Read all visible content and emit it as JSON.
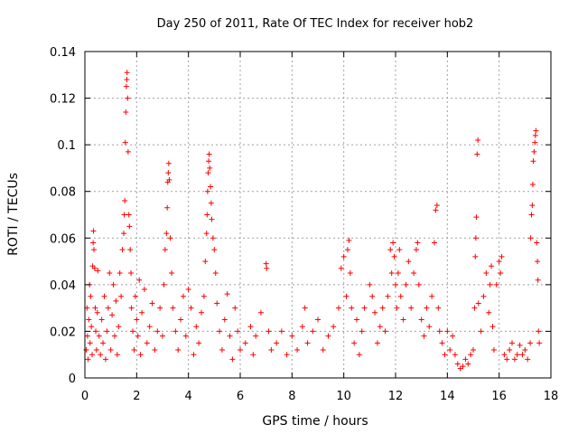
{
  "chart_data": {
    "type": "scatter",
    "title": "Day 250 of 2011, Rate Of TEC Index for receiver hob2",
    "xlabel": "GPS time / hours",
    "ylabel": "ROTI / TECUs",
    "xlim": [
      0,
      18
    ],
    "ylim": [
      0,
      0.14
    ],
    "x_ticks": [
      0,
      2,
      4,
      6,
      8,
      10,
      12,
      14,
      16,
      18
    ],
    "y_ticks": [
      0,
      0.02,
      0.04,
      0.06,
      0.08,
      0.1,
      0.12,
      0.14
    ],
    "x_tick_labels": [
      "0",
      "2",
      "4",
      "6",
      "8",
      "10",
      "12",
      "14",
      "16",
      "18"
    ],
    "y_tick_labels": [
      "0",
      "0.02",
      "0.04",
      "0.06",
      "0.08",
      "0.1",
      "0.12",
      "0.14"
    ],
    "grid": true,
    "marker": "+",
    "color": "#ff0000",
    "series": [
      {
        "name": "ROTI",
        "points": [
          [
            0.05,
            0.012
          ],
          [
            0.08,
            0.03
          ],
          [
            0.1,
            0.018
          ],
          [
            0.12,
            0.008
          ],
          [
            0.15,
            0.025
          ],
          [
            0.18,
            0.04
          ],
          [
            0.2,
            0.015
          ],
          [
            0.22,
            0.035
          ],
          [
            0.25,
            0.022
          ],
          [
            0.28,
            0.01
          ],
          [
            0.3,
            0.048
          ],
          [
            0.32,
            0.058
          ],
          [
            0.33,
            0.063
          ],
          [
            0.35,
            0.055
          ],
          [
            0.38,
            0.047
          ],
          [
            0.4,
            0.03
          ],
          [
            0.42,
            0.02
          ],
          [
            0.45,
            0.012
          ],
          [
            0.48,
            0.028
          ],
          [
            0.5,
            0.046
          ],
          [
            0.55,
            0.018
          ],
          [
            0.6,
            0.01
          ],
          [
            0.65,
            0.025
          ],
          [
            0.7,
            0.015
          ],
          [
            0.75,
            0.035
          ],
          [
            0.8,
            0.008
          ],
          [
            0.85,
            0.02
          ],
          [
            0.9,
            0.03
          ],
          [
            0.95,
            0.045
          ],
          [
            1.0,
            0.012
          ],
          [
            1.05,
            0.027
          ],
          [
            1.1,
            0.04
          ],
          [
            1.15,
            0.018
          ],
          [
            1.2,
            0.033
          ],
          [
            1.25,
            0.01
          ],
          [
            1.3,
            0.022
          ],
          [
            1.35,
            0.045
          ],
          [
            1.4,
            0.035
          ],
          [
            1.45,
            0.055
          ],
          [
            1.5,
            0.062
          ],
          [
            1.52,
            0.07
          ],
          [
            1.54,
            0.076
          ],
          [
            1.56,
            0.101
          ],
          [
            1.58,
            0.114
          ],
          [
            1.6,
            0.125
          ],
          [
            1.62,
            0.128
          ],
          [
            1.63,
            0.131
          ],
          [
            1.65,
            0.12
          ],
          [
            1.67,
            0.097
          ],
          [
            1.7,
            0.07
          ],
          [
            1.72,
            0.065
          ],
          [
            1.75,
            0.055
          ],
          [
            1.78,
            0.045
          ],
          [
            1.8,
            0.03
          ],
          [
            1.85,
            0.02
          ],
          [
            1.9,
            0.012
          ],
          [
            1.95,
            0.035
          ],
          [
            2.0,
            0.025
          ],
          [
            2.05,
            0.018
          ],
          [
            2.1,
            0.042
          ],
          [
            2.15,
            0.01
          ],
          [
            2.2,
            0.028
          ],
          [
            2.3,
            0.038
          ],
          [
            2.4,
            0.015
          ],
          [
            2.5,
            0.022
          ],
          [
            2.6,
            0.032
          ],
          [
            2.7,
            0.012
          ],
          [
            2.8,
            0.02
          ],
          [
            2.9,
            0.03
          ],
          [
            3.0,
            0.018
          ],
          [
            3.05,
            0.04
          ],
          [
            3.1,
            0.055
          ],
          [
            3.15,
            0.062
          ],
          [
            3.18,
            0.073
          ],
          [
            3.2,
            0.084
          ],
          [
            3.22,
            0.088
          ],
          [
            3.24,
            0.092
          ],
          [
            3.26,
            0.085
          ],
          [
            3.3,
            0.06
          ],
          [
            3.35,
            0.045
          ],
          [
            3.4,
            0.03
          ],
          [
            3.5,
            0.02
          ],
          [
            3.6,
            0.012
          ],
          [
            3.7,
            0.025
          ],
          [
            3.8,
            0.035
          ],
          [
            3.9,
            0.018
          ],
          [
            4.0,
            0.038
          ],
          [
            4.1,
            0.03
          ],
          [
            4.2,
            0.01
          ],
          [
            4.3,
            0.022
          ],
          [
            4.4,
            0.015
          ],
          [
            4.5,
            0.028
          ],
          [
            4.6,
            0.035
          ],
          [
            4.65,
            0.05
          ],
          [
            4.7,
            0.062
          ],
          [
            4.72,
            0.07
          ],
          [
            4.74,
            0.08
          ],
          [
            4.76,
            0.088
          ],
          [
            4.78,
            0.093
          ],
          [
            4.8,
            0.096
          ],
          [
            4.82,
            0.09
          ],
          [
            4.85,
            0.082
          ],
          [
            4.88,
            0.075
          ],
          [
            4.9,
            0.068
          ],
          [
            4.95,
            0.06
          ],
          [
            5.0,
            0.055
          ],
          [
            5.05,
            0.045
          ],
          [
            5.1,
            0.032
          ],
          [
            5.2,
            0.02
          ],
          [
            5.3,
            0.012
          ],
          [
            5.4,
            0.025
          ],
          [
            5.5,
            0.036
          ],
          [
            5.6,
            0.018
          ],
          [
            5.7,
            0.008
          ],
          [
            5.8,
            0.03
          ],
          [
            5.9,
            0.02
          ],
          [
            6.0,
            0.012
          ],
          [
            6.2,
            0.015
          ],
          [
            6.4,
            0.022
          ],
          [
            6.5,
            0.01
          ],
          [
            6.6,
            0.018
          ],
          [
            6.8,
            0.028
          ],
          [
            7.0,
            0.049
          ],
          [
            7.02,
            0.047
          ],
          [
            7.1,
            0.02
          ],
          [
            7.2,
            0.012
          ],
          [
            7.4,
            0.015
          ],
          [
            7.6,
            0.02
          ],
          [
            7.8,
            0.01
          ],
          [
            8.0,
            0.018
          ],
          [
            8.2,
            0.012
          ],
          [
            8.4,
            0.022
          ],
          [
            8.5,
            0.03
          ],
          [
            8.6,
            0.015
          ],
          [
            8.8,
            0.02
          ],
          [
            9.0,
            0.025
          ],
          [
            9.2,
            0.012
          ],
          [
            9.4,
            0.018
          ],
          [
            9.6,
            0.022
          ],
          [
            9.8,
            0.03
          ],
          [
            9.9,
            0.047
          ],
          [
            10.0,
            0.052
          ],
          [
            10.1,
            0.035
          ],
          [
            10.15,
            0.055
          ],
          [
            10.2,
            0.059
          ],
          [
            10.25,
            0.045
          ],
          [
            10.3,
            0.03
          ],
          [
            10.4,
            0.015
          ],
          [
            10.5,
            0.025
          ],
          [
            10.6,
            0.01
          ],
          [
            10.7,
            0.02
          ],
          [
            10.8,
            0.03
          ],
          [
            11.0,
            0.04
          ],
          [
            11.1,
            0.035
          ],
          [
            11.2,
            0.028
          ],
          [
            11.3,
            0.015
          ],
          [
            11.4,
            0.022
          ],
          [
            11.5,
            0.03
          ],
          [
            11.6,
            0.02
          ],
          [
            11.7,
            0.035
          ],
          [
            11.8,
            0.055
          ],
          [
            11.85,
            0.045
          ],
          [
            11.9,
            0.058
          ],
          [
            11.95,
            0.052
          ],
          [
            12.0,
            0.04
          ],
          [
            12.05,
            0.03
          ],
          [
            12.1,
            0.045
          ],
          [
            12.15,
            0.055
          ],
          [
            12.2,
            0.035
          ],
          [
            12.3,
            0.025
          ],
          [
            12.4,
            0.04
          ],
          [
            12.5,
            0.05
          ],
          [
            12.6,
            0.03
          ],
          [
            12.7,
            0.045
          ],
          [
            12.8,
            0.055
          ],
          [
            12.85,
            0.058
          ],
          [
            12.9,
            0.04
          ],
          [
            13.0,
            0.025
          ],
          [
            13.1,
            0.018
          ],
          [
            13.2,
            0.03
          ],
          [
            13.3,
            0.022
          ],
          [
            13.4,
            0.035
          ],
          [
            13.5,
            0.058
          ],
          [
            13.55,
            0.072
          ],
          [
            13.6,
            0.074
          ],
          [
            13.65,
            0.03
          ],
          [
            13.7,
            0.02
          ],
          [
            13.8,
            0.015
          ],
          [
            13.9,
            0.01
          ],
          [
            14.0,
            0.02
          ],
          [
            14.1,
            0.012
          ],
          [
            14.2,
            0.018
          ],
          [
            14.3,
            0.01
          ],
          [
            14.4,
            0.006
          ],
          [
            14.5,
            0.004
          ],
          [
            14.6,
            0.005
          ],
          [
            14.7,
            0.008
          ],
          [
            14.8,
            0.006
          ],
          [
            14.9,
            0.01
          ],
          [
            15.0,
            0.012
          ],
          [
            15.05,
            0.03
          ],
          [
            15.08,
            0.052
          ],
          [
            15.1,
            0.06
          ],
          [
            15.12,
            0.069
          ],
          [
            15.15,
            0.096
          ],
          [
            15.18,
            0.102
          ],
          [
            15.2,
            0.032
          ],
          [
            15.3,
            0.02
          ],
          [
            15.4,
            0.035
          ],
          [
            15.5,
            0.045
          ],
          [
            15.6,
            0.028
          ],
          [
            15.65,
            0.04
          ],
          [
            15.7,
            0.048
          ],
          [
            15.75,
            0.022
          ],
          [
            15.8,
            0.012
          ],
          [
            15.9,
            0.04
          ],
          [
            16.0,
            0.05
          ],
          [
            16.05,
            0.045
          ],
          [
            16.1,
            0.052
          ],
          [
            16.2,
            0.01
          ],
          [
            16.3,
            0.008
          ],
          [
            16.4,
            0.012
          ],
          [
            16.5,
            0.015
          ],
          [
            16.6,
            0.008
          ],
          [
            16.7,
            0.01
          ],
          [
            16.8,
            0.014
          ],
          [
            16.9,
            0.01
          ],
          [
            17.0,
            0.012
          ],
          [
            17.1,
            0.008
          ],
          [
            17.2,
            0.015
          ],
          [
            17.22,
            0.06
          ],
          [
            17.25,
            0.07
          ],
          [
            17.28,
            0.074
          ],
          [
            17.3,
            0.083
          ],
          [
            17.32,
            0.093
          ],
          [
            17.35,
            0.097
          ],
          [
            17.38,
            0.101
          ],
          [
            17.4,
            0.104
          ],
          [
            17.42,
            0.106
          ],
          [
            17.45,
            0.058
          ],
          [
            17.48,
            0.05
          ],
          [
            17.5,
            0.042
          ],
          [
            17.52,
            0.02
          ],
          [
            17.55,
            0.015
          ]
        ]
      }
    ]
  }
}
